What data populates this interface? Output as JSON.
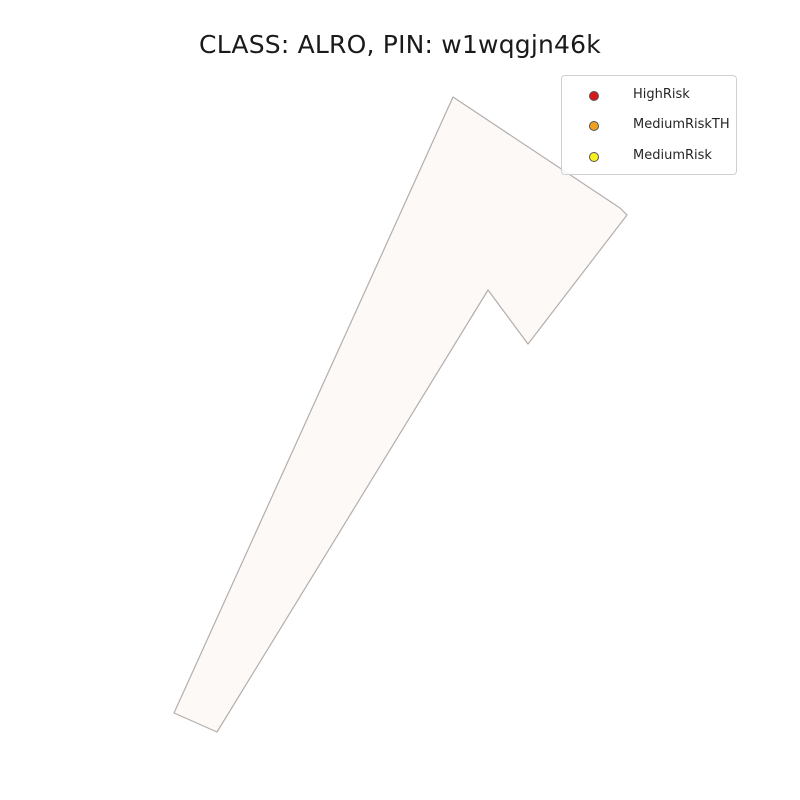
{
  "map": {
    "title": "CLASS: ALRO, PIN: w1wqgjn46k",
    "parcel": {
      "fill": "#fdf9f6",
      "stroke": "#b3aeab"
    }
  },
  "legend": {
    "items": [
      {
        "label": "HighRisk",
        "color": "#d7191c"
      },
      {
        "label": "MediumRiskTH",
        "color": "#f0a020"
      },
      {
        "label": "MediumRisk",
        "color": "#f5f01e"
      }
    ]
  }
}
